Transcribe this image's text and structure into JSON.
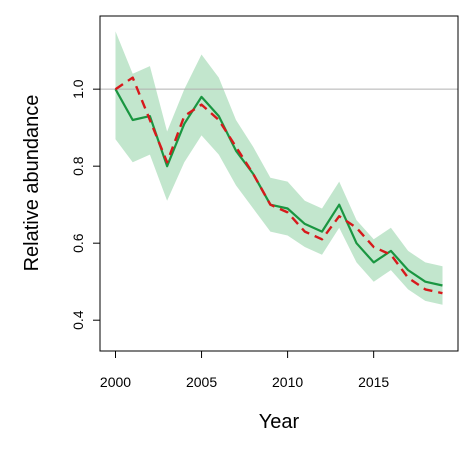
{
  "chart_data": {
    "type": "line",
    "title": "",
    "xlabel": "Year",
    "ylabel": "Relative abundance",
    "xlim": [
      1999.1,
      2019.9
    ],
    "ylim": [
      0.32,
      1.19
    ],
    "x_ticks": [
      2000,
      2005,
      2010,
      2015
    ],
    "y_ticks": [
      0.4,
      0.6,
      0.8,
      1.0
    ],
    "x_tick_labels": [
      "2000",
      "2005",
      "2010",
      "2015"
    ],
    "y_tick_labels": [
      "0.4",
      "0.6",
      "0.8",
      "1.0"
    ],
    "reference_line": 1.0,
    "legend": "none",
    "grid": false,
    "x": [
      2000,
      2001,
      2002,
      2003,
      2004,
      2005,
      2006,
      2007,
      2008,
      2009,
      2010,
      2011,
      2012,
      2013,
      2014,
      2015,
      2016,
      2017,
      2018,
      2019
    ],
    "band": {
      "color": "#c2e6cd",
      "upper": [
        1.15,
        1.04,
        1.06,
        0.89,
        1.0,
        1.09,
        1.03,
        0.92,
        0.85,
        0.77,
        0.76,
        0.71,
        0.69,
        0.76,
        0.66,
        0.61,
        0.64,
        0.58,
        0.55,
        0.54
      ],
      "lower": [
        0.87,
        0.81,
        0.83,
        0.71,
        0.81,
        0.88,
        0.83,
        0.75,
        0.69,
        0.63,
        0.62,
        0.59,
        0.57,
        0.64,
        0.55,
        0.5,
        0.53,
        0.48,
        0.45,
        0.44
      ]
    },
    "series": [
      {
        "color": "#1a9641",
        "style": "solid",
        "values": [
          1.0,
          0.92,
          0.93,
          0.8,
          0.91,
          0.98,
          0.93,
          0.84,
          0.78,
          0.7,
          0.69,
          0.65,
          0.63,
          0.7,
          0.6,
          0.55,
          0.58,
          0.53,
          0.5,
          0.49
        ]
      },
      {
        "color": "#d7191c",
        "style": "dashed",
        "values": [
          1.0,
          1.03,
          0.92,
          0.81,
          0.93,
          0.96,
          0.92,
          0.85,
          0.78,
          0.7,
          0.68,
          0.63,
          0.61,
          0.67,
          0.64,
          0.59,
          0.57,
          0.51,
          0.48,
          0.47
        ]
      }
    ]
  }
}
